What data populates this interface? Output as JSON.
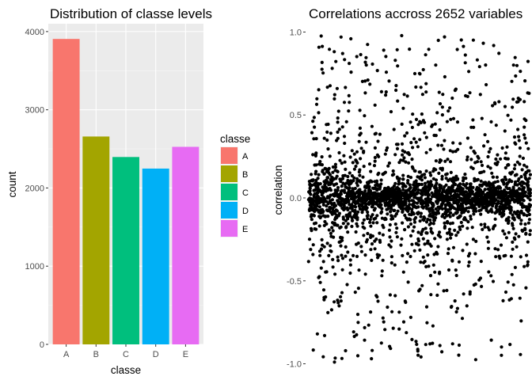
{
  "chart_data": [
    {
      "type": "bar",
      "title": "Distribution of classe levels",
      "xlabel": "classe",
      "ylabel": "count",
      "categories": [
        "A",
        "B",
        "C",
        "D",
        "E"
      ],
      "values": [
        3906,
        2658,
        2396,
        2248,
        2526
      ],
      "colors": [
        "#F8766D",
        "#A3A500",
        "#00BF7D",
        "#00B0F6",
        "#E76BF3"
      ],
      "ylim": [
        0,
        4100
      ],
      "yticks": [
        0,
        1000,
        2000,
        3000,
        4000
      ],
      "legend": {
        "title": "classe",
        "placement": "right",
        "entries": [
          "A",
          "B",
          "C",
          "D",
          "E"
        ]
      },
      "grid": true,
      "background": "#EBEBEB"
    },
    {
      "type": "scatter",
      "title": "Correlations accross 2652 variables",
      "xlabel": "",
      "ylabel": "correlation",
      "ylim": [
        -1.05,
        1.05
      ],
      "yticks": [
        -1.0,
        -0.5,
        0.0,
        0.5,
        1.0
      ],
      "ytick_labels": [
        "-1.0",
        "-0.5",
        "0.0",
        "0.5",
        "1.0"
      ],
      "n_points": 2652,
      "point_color": "#000000",
      "background": "#FFFFFF",
      "grid": false
    }
  ]
}
